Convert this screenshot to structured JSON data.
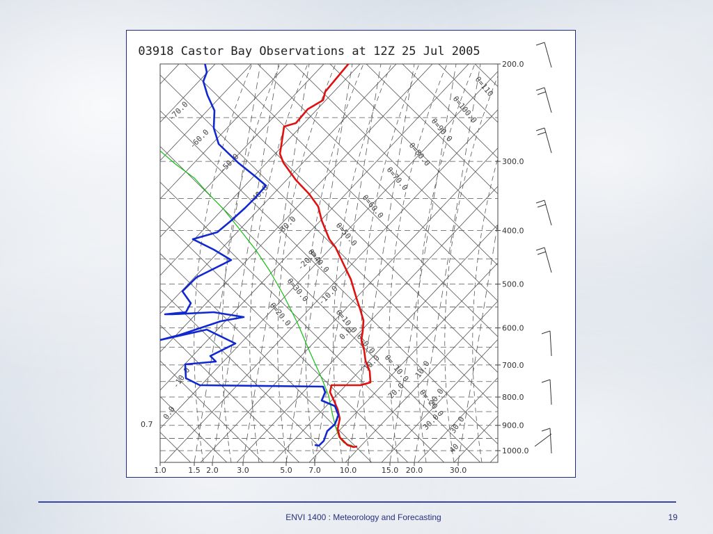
{
  "slide": {
    "footer_text": "ENVI 1400 : Meteorology and Forecasting",
    "page_number": "19"
  },
  "chart_data": {
    "type": "line",
    "title": "03918 Castor Bay Observations at 12Z 25 Jul 2005",
    "xlabel": "",
    "ylabel": "",
    "x_ticks": [
      "1.0",
      "1.5",
      "2.0",
      "3.0",
      "5.0",
      "7.0",
      "10.0",
      "15.0",
      "20.0",
      "30.0"
    ],
    "y_ticks": [
      "200.0",
      "300.0",
      "400.0",
      "500.0",
      "600.0",
      "700.0",
      "800.0",
      "900.0",
      "1000.0"
    ],
    "y_extra_label": "0.7",
    "isotherm_labels": [
      "-70.0",
      "-60.0",
      "-50.0",
      "-40.0",
      "-30.0",
      "-20.0",
      "-10.0",
      "0.0",
      "10.0",
      "20.0",
      "30.0",
      "40"
    ],
    "theta_labels": [
      "θ=110",
      "θ=100.0",
      "θ=90.0",
      "θ=80.0",
      "θ=70.0",
      "θ=60.0",
      "θ=50.0",
      "θ=40.0",
      "θ=30.0",
      "θ=20.0",
      "θ=10.0",
      "θ=0.0",
      "θ=-10.0",
      "θ=-20.0"
    ],
    "mixing_labels": [
      "-10.0",
      "0.0",
      "10.0",
      "20.0",
      "30.0"
    ],
    "series": [
      {
        "name": "",
        "color": "#e01010"
      },
      {
        "name": "",
        "color": "#1028d0"
      },
      {
        "name": "",
        "color": "#10c010"
      }
    ],
    "wind_levels": [
      "200.0",
      "250.0",
      "300.0",
      "400.0",
      "500.0",
      "700.0",
      "850.0",
      "1000.0"
    ]
  }
}
